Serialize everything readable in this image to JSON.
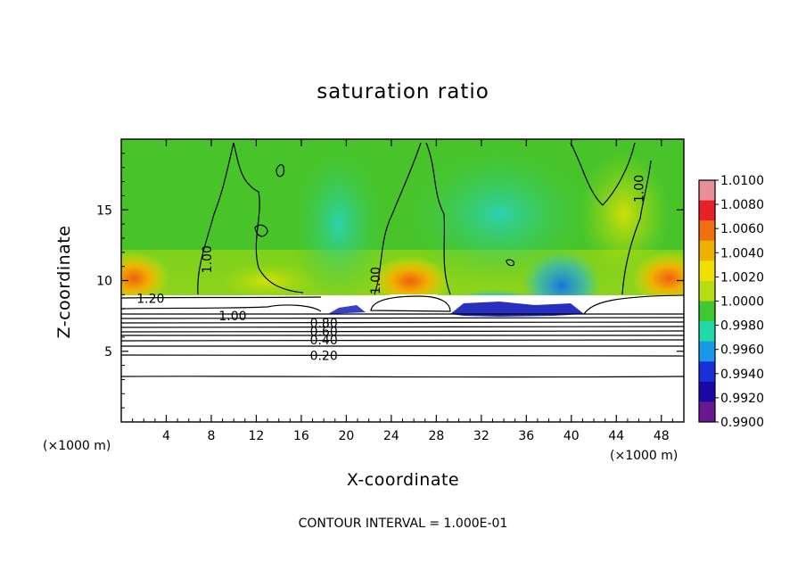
{
  "chart_data": {
    "type": "heatmap",
    "title": "saturation ratio",
    "xlabel": "X-coordinate",
    "ylabel": "Z-coordinate",
    "x_unit_label": "(×1000 m)",
    "xlim": [
      0,
      50
    ],
    "ylim": [
      0,
      20
    ],
    "x_ticks": [
      4,
      8,
      12,
      16,
      20,
      24,
      28,
      32,
      36,
      40,
      44,
      48
    ],
    "y_ticks": [
      5,
      10,
      15
    ],
    "colorbar": {
      "range": [
        0.99,
        1.01
      ],
      "ticks": [
        "1.0100",
        "1.0080",
        "1.0060",
        "1.0040",
        "1.0020",
        "1.0000",
        "0.9980",
        "0.9960",
        "0.9940",
        "0.9920",
        "0.9900"
      ],
      "colors": [
        "#e8909a",
        "#e8202a",
        "#f07010",
        "#f0b000",
        "#f0e000",
        "#b8dc10",
        "#40c830",
        "#20d8a8",
        "#1898e8",
        "#1830d8",
        "#1808a8",
        "#681890"
      ]
    },
    "contour_labels": [
      {
        "text": "1.20",
        "x": 2.6,
        "z": 8.75
      },
      {
        "text": "1.00",
        "x": 9.9,
        "z": 7.5
      },
      {
        "text": "0.80",
        "x": 18.0,
        "z": 7.0
      },
      {
        "text": "0.60",
        "x": 18.0,
        "z": 6.4
      },
      {
        "text": "0.40",
        "x": 18.0,
        "z": 5.8
      },
      {
        "text": "0.20",
        "x": 18.0,
        "z": 4.7
      },
      {
        "text": "1.00",
        "x": 7.6,
        "z": 11.5
      },
      {
        "text": "1.00",
        "x": 22.6,
        "z": 10.0
      },
      {
        "text": "1.00",
        "x": 46.0,
        "z": 16.5
      }
    ],
    "contour_interval_text": "CONTOUR INTERVAL = 1.000E-01"
  }
}
